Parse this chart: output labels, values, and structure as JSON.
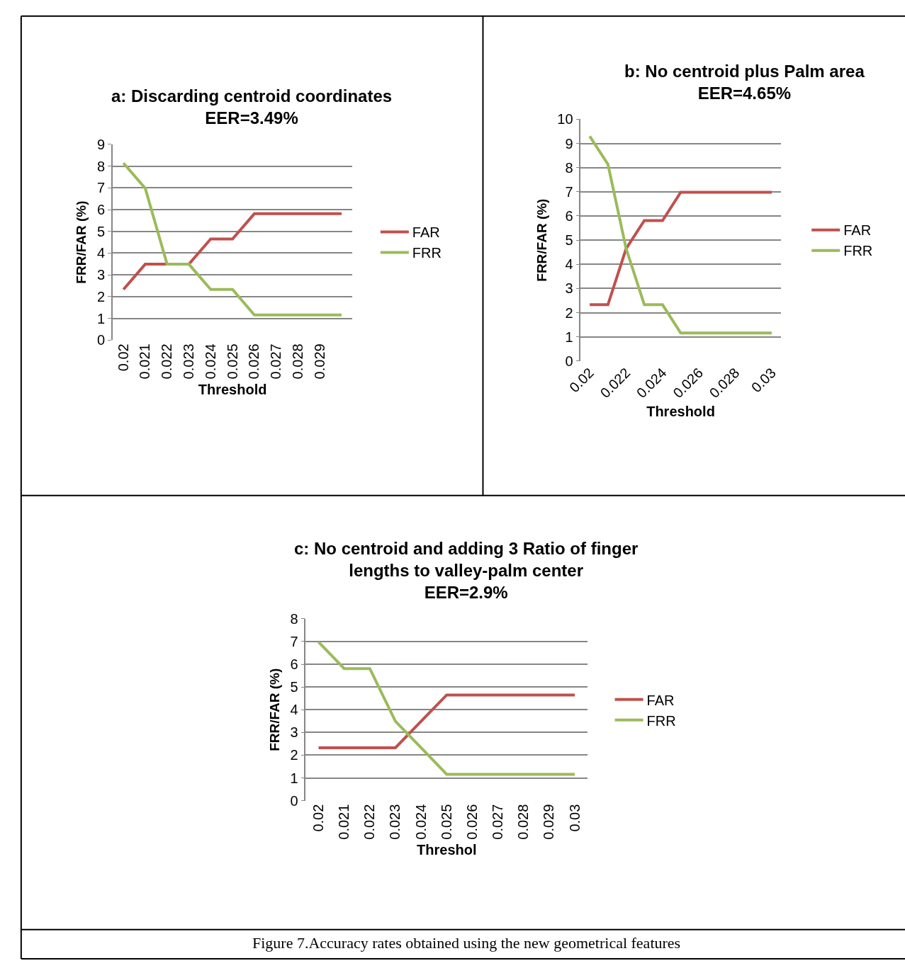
{
  "chart_data": [
    {
      "type": "line",
      "title": "a: Discarding centroid coordinates\nEER=3.49%",
      "xlabel": "Threshold",
      "ylabel": "FRR/FAR (%)",
      "categories": [
        "0.02",
        "0.021",
        "0.022",
        "0.023",
        "0.024",
        "0.025",
        "0.026",
        "0.027",
        "0.028",
        "0.029",
        null
      ],
      "series": [
        {
          "name": "FAR",
          "color": "#c0504d",
          "values": [
            2.33,
            3.49,
            3.49,
            3.49,
            4.65,
            4.65,
            5.81,
            5.81,
            5.81,
            5.81,
            5.81
          ]
        },
        {
          "name": "FRR",
          "color": "#9bbb59",
          "values": [
            8.14,
            6.98,
            3.49,
            3.49,
            2.33,
            2.33,
            1.16,
            1.16,
            1.16,
            1.16,
            1.16
          ]
        }
      ],
      "ylim": [
        0,
        9
      ],
      "yticks": [
        0,
        1,
        2,
        3,
        4,
        5,
        6,
        7,
        8,
        9
      ],
      "grid": "y",
      "legend": "right",
      "marker": "none"
    },
    {
      "type": "line",
      "title": "b: No centroid plus Palm area\nEER=4.65%",
      "xlabel": "Threshold",
      "ylabel": "FRR/FAR (%)",
      "categories": [
        "0.02",
        null,
        "0.022",
        null,
        "0.024",
        null,
        "0.026",
        null,
        "0.028",
        null,
        "0.03"
      ],
      "series": [
        {
          "name": "FAR",
          "color": "#c0504d",
          "values": [
            2.33,
            2.33,
            4.65,
            5.81,
            5.81,
            6.98,
            6.98,
            6.98,
            6.98,
            6.98,
            6.98
          ]
        },
        {
          "name": "FRR",
          "color": "#9bbb59",
          "values": [
            9.3,
            8.14,
            4.65,
            2.33,
            2.33,
            1.16,
            1.16,
            1.16,
            1.16,
            1.16,
            1.16
          ]
        }
      ],
      "ylim": [
        0,
        10
      ],
      "yticks": [
        0,
        1,
        2,
        3,
        4,
        5,
        6,
        7,
        8,
        9,
        10
      ],
      "grid": "y",
      "legend": "right",
      "marker": "none"
    },
    {
      "type": "line",
      "title": "c: No centroid and adding 3 Ratio of finger\nlengths to valley-palm center\nEER=2.9%",
      "xlabel": "Threshol",
      "ylabel": "FRR/FAR (%)",
      "categories": [
        "0.02",
        "0.021",
        "0.022",
        "0.023",
        "0.024",
        "0.025",
        "0.026",
        "0.027",
        "0.028",
        "0.029",
        "0.03"
      ],
      "series": [
        {
          "name": "FAR",
          "color": "#c0504d",
          "values": [
            2.33,
            2.33,
            2.33,
            2.33,
            3.49,
            4.65,
            4.65,
            4.65,
            4.65,
            4.65,
            4.65
          ]
        },
        {
          "name": "FRR",
          "color": "#9bbb59",
          "values": [
            6.98,
            5.81,
            5.81,
            3.49,
            2.33,
            1.16,
            1.16,
            1.16,
            1.16,
            1.16,
            1.16
          ]
        }
      ],
      "ylim": [
        0,
        8
      ],
      "yticks": [
        0,
        1,
        2,
        3,
        4,
        5,
        6,
        7,
        8
      ],
      "grid": "y",
      "legend": "right",
      "marker": "none",
      "annotations": [
        "Figure 7.Accuracy rates obtained using the new geometrical features"
      ]
    }
  ]
}
